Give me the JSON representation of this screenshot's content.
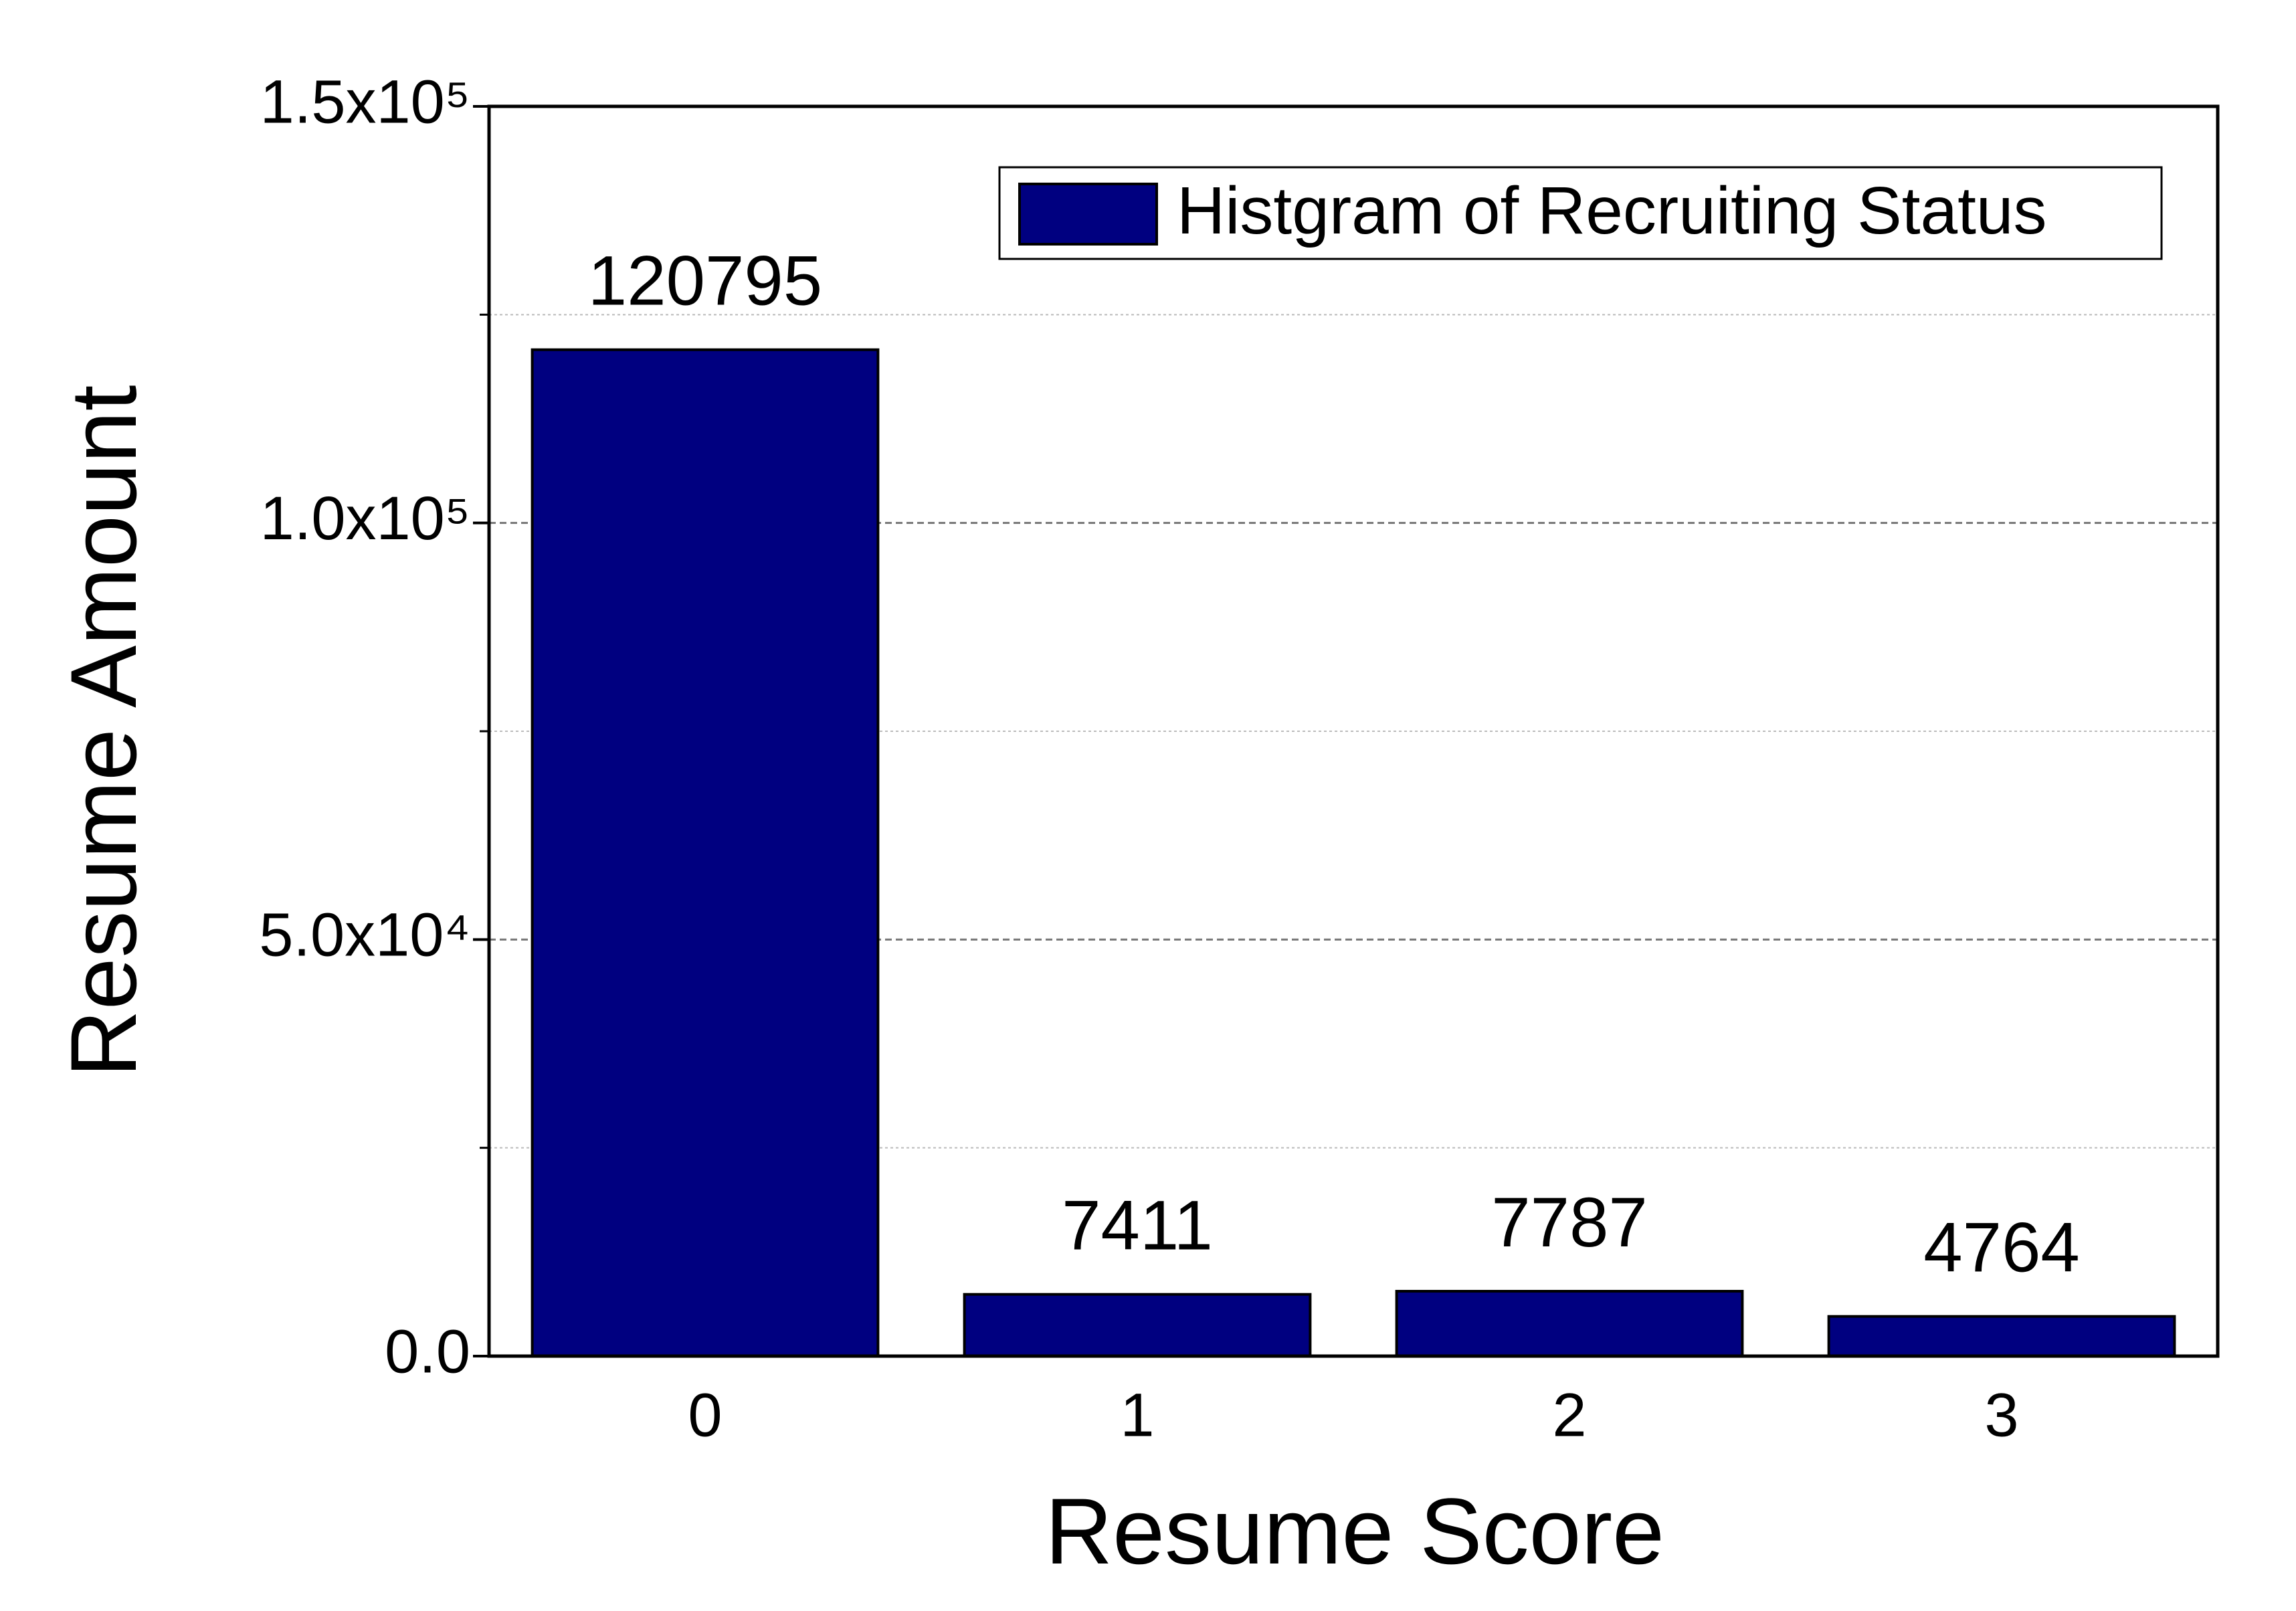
{
  "chart_data": {
    "type": "bar",
    "x_label": "Resume Score",
    "y_label": "Resume Amount",
    "categories": [
      "0",
      "1",
      "2",
      "3"
    ],
    "series": [
      {
        "name": "Histgram of Recruiting Status",
        "color": "#000080",
        "values": [
          120795,
          7411,
          7787,
          4764
        ]
      }
    ],
    "ylim": [
      0,
      150000
    ],
    "yticks": [
      {
        "value": 0,
        "label": "0.0"
      },
      {
        "value": 50000,
        "label": "5.0x10⁴"
      },
      {
        "value": 100000,
        "label": "1.0x10⁵"
      },
      {
        "value": 150000,
        "label": "1.5x10⁵"
      }
    ],
    "minor_yticks": [
      25000,
      75000,
      125000
    ],
    "grid": true,
    "legend": "upper right"
  }
}
